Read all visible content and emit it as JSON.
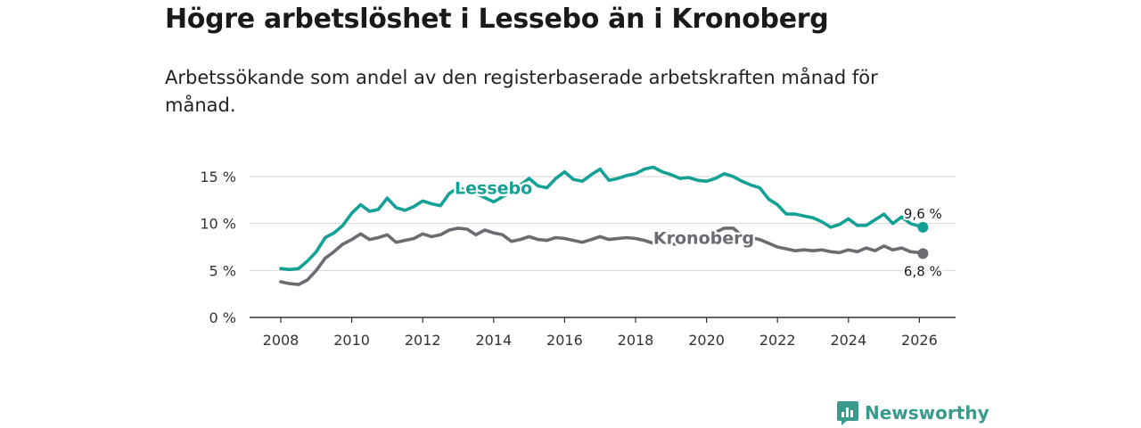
{
  "header": {
    "title": "Högre arbetslöshet i Lessebo än i Kronoberg",
    "subtitle": "Arbetssökande som andel av den registerbaserade arbetskraften månad för månad."
  },
  "brand": {
    "name": "Newsworthy",
    "icon": "newsworthy-logo-icon",
    "color": "#3a9a8c"
  },
  "chart_data": {
    "type": "line",
    "title": "Högre arbetslöshet i Lessebo än i Kronoberg",
    "subtitle": "Arbetssökande som andel av den registerbaserade arbetskraften månad för månad.",
    "xlabel": "",
    "ylabel": "",
    "xlim": [
      2007.5,
      2027.0
    ],
    "ylim": [
      0,
      15
    ],
    "grid": true,
    "x_ticks": [
      2008,
      2010,
      2012,
      2014,
      2016,
      2018,
      2020,
      2022,
      2024,
      2026
    ],
    "x_tick_labels": [
      "2008",
      "2010",
      "2012",
      "2014",
      "2016",
      "2018",
      "2020",
      "2022",
      "2024",
      "2026"
    ],
    "y_ticks": [
      0,
      5,
      10,
      15
    ],
    "y_tick_labels": [
      "0 %",
      "5 %",
      "10 %",
      "15 %"
    ],
    "series": [
      {
        "name": "Lessebo",
        "color": "#13a195",
        "label_at": [
          2012.9,
          13.8
        ],
        "end_label": "9,6 %",
        "x": [
          2008.0,
          2008.25,
          2008.5,
          2008.75,
          2009.0,
          2009.25,
          2009.5,
          2009.75,
          2010.0,
          2010.25,
          2010.5,
          2010.75,
          2011.0,
          2011.25,
          2011.5,
          2011.75,
          2012.0,
          2012.25,
          2012.5,
          2012.75,
          2013.0,
          2013.5,
          2014.0,
          2014.5,
          2015.0,
          2015.25,
          2015.5,
          2015.75,
          2016.0,
          2016.25,
          2016.5,
          2016.75,
          2017.0,
          2017.25,
          2017.5,
          2017.75,
          2018.0,
          2018.25,
          2018.5,
          2018.75,
          2019.0,
          2019.25,
          2019.5,
          2019.75,
          2020.0,
          2020.25,
          2020.5,
          2020.75,
          2021.0,
          2021.25,
          2021.5,
          2021.75,
          2022.0,
          2022.25,
          2022.5,
          2022.75,
          2023.0,
          2023.25,
          2023.5,
          2023.75,
          2024.0,
          2024.25,
          2024.5,
          2024.75,
          2025.0,
          2025.25,
          2025.5,
          2025.75,
          2026.0,
          2026.1
        ],
        "values": [
          5.2,
          5.1,
          5.2,
          6.0,
          7.0,
          8.5,
          9.0,
          9.8,
          11.1,
          12.0,
          11.3,
          11.5,
          12.7,
          11.7,
          11.4,
          11.8,
          12.4,
          12.1,
          11.9,
          13.2,
          13.8,
          13.2,
          12.3,
          13.4,
          14.8,
          14.0,
          13.8,
          14.8,
          15.5,
          14.7,
          14.5,
          15.2,
          15.8,
          14.6,
          14.8,
          15.1,
          15.3,
          15.8,
          16.0,
          15.5,
          15.2,
          14.8,
          14.9,
          14.6,
          14.5,
          14.8,
          15.3,
          15.0,
          14.5,
          14.1,
          13.8,
          12.6,
          12.0,
          11.0,
          11.0,
          10.8,
          10.6,
          10.2,
          9.6,
          9.9,
          10.5,
          9.8,
          9.8,
          10.4,
          11.0,
          10.0,
          10.7,
          10.0,
          9.7,
          9.6
        ]
      },
      {
        "name": "Kronoberg",
        "color": "#6d6a72",
        "label_at": [
          2018.5,
          8.5
        ],
        "end_label": "6,8 %",
        "x": [
          2008.0,
          2008.25,
          2008.5,
          2008.75,
          2009.0,
          2009.25,
          2009.5,
          2009.75,
          2010.0,
          2010.25,
          2010.5,
          2010.75,
          2011.0,
          2011.25,
          2011.5,
          2011.75,
          2012.0,
          2012.25,
          2012.5,
          2012.75,
          2013.0,
          2013.25,
          2013.5,
          2013.75,
          2014.0,
          2014.25,
          2014.5,
          2014.75,
          2015.0,
          2015.25,
          2015.5,
          2015.75,
          2016.0,
          2016.25,
          2016.5,
          2016.75,
          2017.0,
          2017.25,
          2017.5,
          2017.75,
          2018.0,
          2018.25,
          2018.5,
          2018.75,
          2019.0,
          2019.5,
          2020.0,
          2020.5,
          2020.75,
          2021.0,
          2021.25,
          2021.5,
          2021.75,
          2022.0,
          2022.25,
          2022.5,
          2022.75,
          2023.0,
          2023.25,
          2023.5,
          2023.75,
          2024.0,
          2024.25,
          2024.5,
          2024.75,
          2025.0,
          2025.25,
          2025.5,
          2025.75,
          2026.0,
          2026.1
        ],
        "values": [
          3.8,
          3.6,
          3.5,
          4.0,
          5.0,
          6.3,
          7.0,
          7.8,
          8.3,
          8.9,
          8.3,
          8.5,
          8.8,
          8.0,
          8.2,
          8.4,
          8.9,
          8.6,
          8.8,
          9.3,
          9.5,
          9.4,
          8.8,
          9.3,
          9.0,
          8.8,
          8.1,
          8.3,
          8.6,
          8.3,
          8.2,
          8.5,
          8.4,
          8.2,
          8.0,
          8.3,
          8.6,
          8.3,
          8.4,
          8.5,
          8.4,
          8.2,
          7.9,
          7.9,
          7.8,
          7.9,
          8.6,
          9.5,
          9.5,
          8.7,
          8.5,
          8.3,
          7.9,
          7.5,
          7.3,
          7.1,
          7.2,
          7.1,
          7.2,
          7.0,
          6.9,
          7.2,
          7.0,
          7.4,
          7.1,
          7.6,
          7.2,
          7.4,
          7.0,
          6.9,
          6.8
        ]
      }
    ]
  }
}
